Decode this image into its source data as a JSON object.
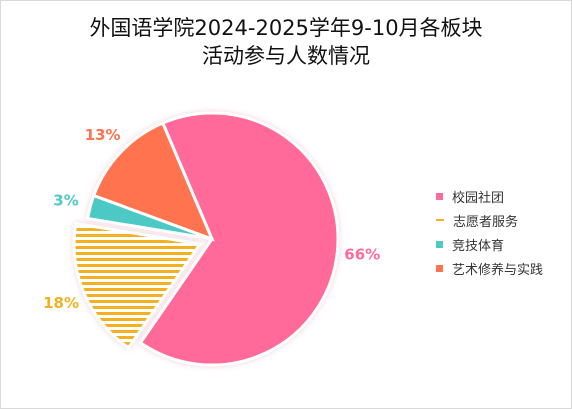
{
  "title_line1": "外国语学院2024-2025学年9-10月各板块",
  "title_line2": "活动参与人数情况",
  "chart_data": {
    "type": "pie",
    "title": "外国语学院2024-2025学年9-10月各板块活动参与人数情况",
    "legend_position": "right",
    "slices": [
      {
        "name": "校园社团",
        "value": 66,
        "label": "66%",
        "color": "#ff6b9a",
        "exploded": false,
        "pattern": "solid"
      },
      {
        "name": "志愿者服务",
        "value": 18,
        "label": "18%",
        "color": "#f5b021",
        "exploded": true,
        "pattern": "stripes"
      },
      {
        "name": "竞技体育",
        "value": 3,
        "label": "3%",
        "color": "#4ec9c5",
        "exploded": false,
        "pattern": "solid"
      },
      {
        "name": "艺术修养与实践",
        "value": 13,
        "label": "13%",
        "color": "#ff7350",
        "exploded": false,
        "pattern": "solid"
      }
    ]
  }
}
